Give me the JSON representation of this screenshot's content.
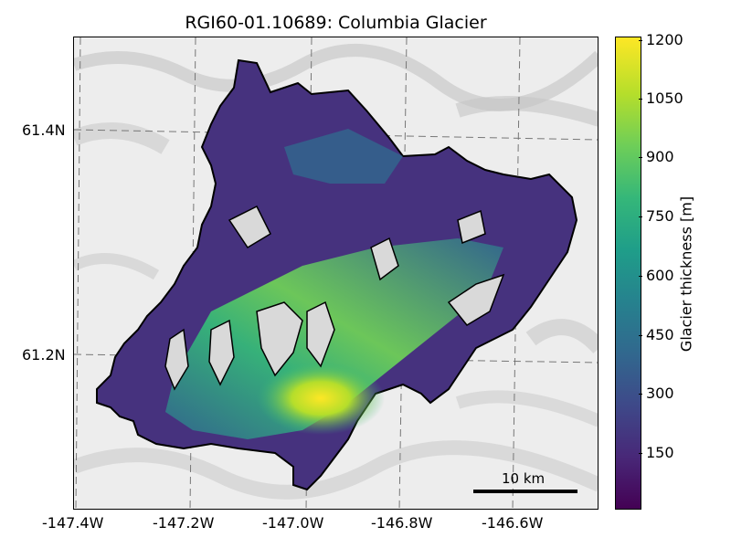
{
  "title": "RGI60-01.10689: Columbia Glacier",
  "x_ticks": [
    "-147.4W",
    "-147.2W",
    "-147.0W",
    "-146.8W",
    "-146.6W"
  ],
  "y_ticks": [
    "61.4N",
    "61.2N"
  ],
  "colorbar": {
    "label": "Glacier thickness [m]",
    "ticks": [
      "1200",
      "1050",
      "900",
      "750",
      "600",
      "450",
      "300",
      "150"
    ],
    "colormap": "viridis",
    "range": [
      0,
      1230
    ]
  },
  "scalebar": {
    "label": "10 km"
  },
  "grid": true
}
